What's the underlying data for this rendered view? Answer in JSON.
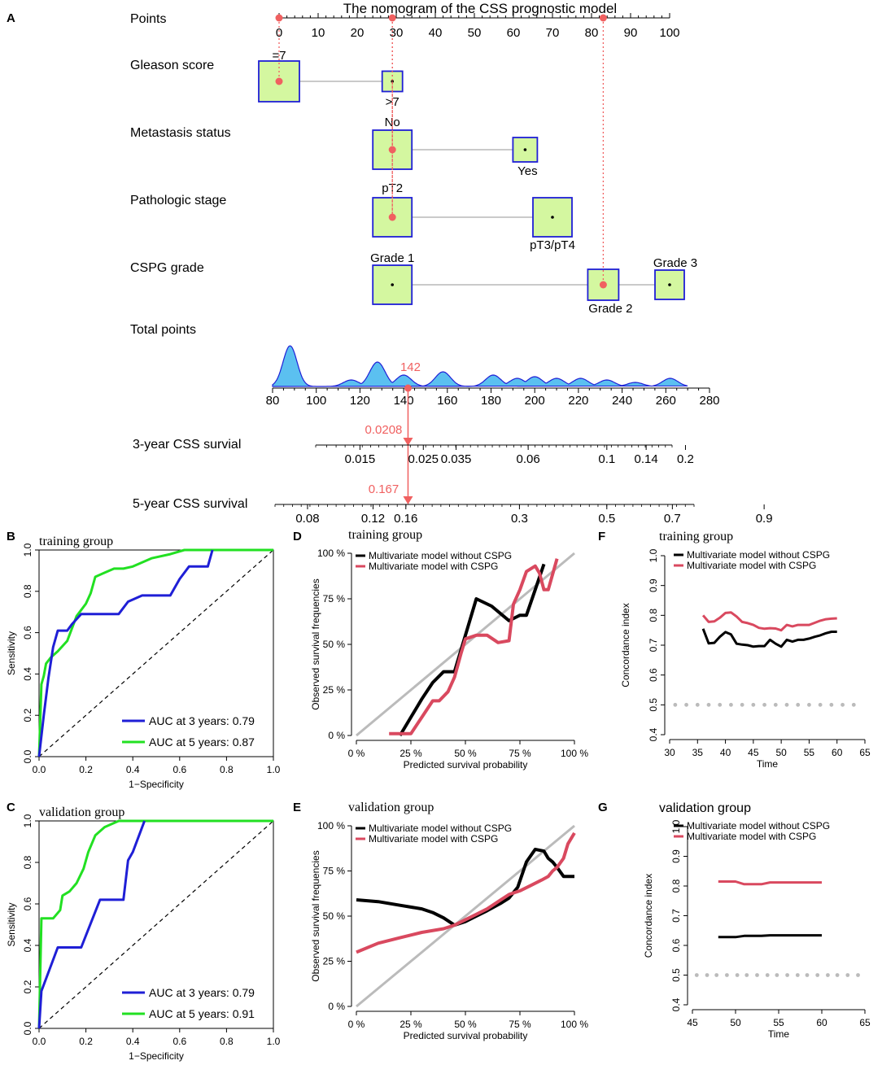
{
  "colors": {
    "box_fill": "#d4f7a0",
    "box_stroke": "#1f1fd6",
    "guide_red": "#f06060",
    "density_fill": "#5bc0f0",
    "density_stroke": "#1f1fd6",
    "roc_3yr": "#1f1fd6",
    "roc_5yr": "#22e022",
    "cal_without": "#000000",
    "cal_with": "#d9495f",
    "ideal_line": "#bbbbbb",
    "ci_ref": "#bbbbbb"
  },
  "panel_letters": [
    "A",
    "B",
    "C",
    "D",
    "E",
    "F",
    "G"
  ],
  "chart_data": [
    {
      "type": "nomogram",
      "panel": "A",
      "title": "The nomogram of the CSS prognostic model",
      "points_axis": {
        "label": "Points",
        "ticks": [
          0,
          10,
          20,
          30,
          40,
          50,
          60,
          70,
          80,
          90,
          100
        ]
      },
      "predictors": [
        {
          "label": "Gleason score",
          "levels": [
            {
              "name": "=7",
              "points": 0
            },
            {
              "name": ">7",
              "points": 29
            }
          ]
        },
        {
          "label": "Metastasis status",
          "levels": [
            {
              "name": "No",
              "points": 29
            },
            {
              "name": "Yes",
              "points": 63
            }
          ]
        },
        {
          "label": "Pathologic stage",
          "levels": [
            {
              "name": "pT2",
              "points": 29
            },
            {
              "name": "pT3/pT4",
              "points": 70
            }
          ]
        },
        {
          "label": "CSPG grade",
          "levels": [
            {
              "name": "Grade 1",
              "points": 29
            },
            {
              "name": "Grade 2",
              "points": 83
            },
            {
              "name": "Grade 3",
              "points": 100
            }
          ]
        }
      ],
      "highlight_points": [
        0,
        29,
        29,
        83
      ],
      "total_points_axis": {
        "label": "Total points",
        "ticks": [
          80,
          100,
          120,
          140,
          160,
          180,
          200,
          220,
          240,
          260,
          280
        ],
        "range": [
          80,
          280
        ]
      },
      "total_density_peaks": [
        88,
        116,
        128,
        140,
        158,
        181,
        192,
        200,
        210,
        221,
        233,
        246,
        262
      ],
      "total_value": 142,
      "total_label": "142",
      "survival_axes": [
        {
          "label": "3-year CSS survial",
          "ticks": [
            "0.015",
            "0.025",
            "0.035",
            "0.06",
            "0.1",
            "0.14",
            "0.2"
          ],
          "tick_totals": [
            120,
            149,
            164,
            197,
            233,
            251,
            269
          ],
          "value_label": "0.0208"
        },
        {
          "label": "5-year CSS survival",
          "ticks": [
            "0.08",
            "0.12",
            "0.16",
            "0.3",
            "0.5",
            "0.7",
            "0.9"
          ],
          "tick_totals": [
            96,
            126,
            141,
            193,
            233,
            263,
            305
          ],
          "value_label": "0.167"
        }
      ]
    },
    {
      "type": "line",
      "panel": "B",
      "title": "training group",
      "xlabel": "1−Specificity",
      "ylabel": "Sensitivity",
      "xlim": [
        0,
        1
      ],
      "ylim": [
        0,
        1
      ],
      "ticks": [
        "0.0",
        "0.2",
        "0.4",
        "0.6",
        "0.8",
        "1.0"
      ],
      "legend": [
        "AUC at 3 years: 0.79",
        "AUC at 5 years: 0.87"
      ],
      "series": [
        {
          "name": "AUC at 3 years: 0.79",
          "x": [
            0.0,
            0.02,
            0.04,
            0.06,
            0.08,
            0.12,
            0.14,
            0.18,
            0.22,
            0.28,
            0.34,
            0.38,
            0.44,
            0.48,
            0.52,
            0.56,
            0.6,
            0.64,
            0.7,
            0.72,
            0.74
          ],
          "y": [
            0.0,
            0.2,
            0.38,
            0.53,
            0.61,
            0.61,
            0.64,
            0.69,
            0.69,
            0.69,
            0.69,
            0.75,
            0.78,
            0.78,
            0.78,
            0.78,
            0.86,
            0.92,
            0.92,
            0.92,
            1.0
          ]
        },
        {
          "name": "AUC at 5 years: 0.87",
          "x": [
            0.0,
            0.01,
            0.02,
            0.03,
            0.05,
            0.08,
            0.12,
            0.16,
            0.2,
            0.22,
            0.24,
            0.28,
            0.32,
            0.36,
            0.4,
            0.48,
            0.56,
            0.62,
            0.7,
            1.0
          ],
          "y": [
            0.0,
            0.35,
            0.39,
            0.45,
            0.48,
            0.51,
            0.56,
            0.68,
            0.74,
            0.79,
            0.87,
            0.89,
            0.91,
            0.91,
            0.92,
            0.96,
            0.98,
            1.0,
            1.0,
            1.0
          ]
        },
        {
          "name": "reference",
          "x": [
            0,
            1
          ],
          "y": [
            0,
            1
          ]
        }
      ]
    },
    {
      "type": "line",
      "panel": "C",
      "title": "validation group",
      "xlabel": "1−Specificity",
      "ylabel": "Sensitivity",
      "xlim": [
        0,
        1
      ],
      "ylim": [
        0,
        1
      ],
      "ticks": [
        "0.0",
        "0.2",
        "0.4",
        "0.6",
        "0.8",
        "1.0"
      ],
      "legend": [
        "AUC at 3 years: 0.79",
        "AUC at 5 years: 0.91"
      ],
      "series": [
        {
          "name": "AUC at 3 years: 0.79",
          "x": [
            0.0,
            0.01,
            0.08,
            0.18,
            0.26,
            0.32,
            0.36,
            0.38,
            0.4,
            0.45
          ],
          "y": [
            0.0,
            0.18,
            0.39,
            0.39,
            0.62,
            0.62,
            0.62,
            0.81,
            0.85,
            1.0
          ]
        },
        {
          "name": "AUC at 5 years: 0.91",
          "x": [
            0.0,
            0.01,
            0.06,
            0.09,
            0.1,
            0.13,
            0.16,
            0.19,
            0.21,
            0.24,
            0.28,
            0.34,
            1.0
          ],
          "y": [
            0.0,
            0.53,
            0.53,
            0.57,
            0.64,
            0.66,
            0.7,
            0.77,
            0.85,
            0.93,
            0.97,
            1.0,
            1.0
          ]
        },
        {
          "name": "reference",
          "x": [
            0,
            1
          ],
          "y": [
            0,
            1
          ]
        }
      ]
    },
    {
      "type": "line",
      "panel": "D",
      "title": "training group",
      "xlabel": "Predicted survival probability",
      "ylabel": "Observed survival frequencies",
      "xticks": [
        "0 %",
        "25 %",
        "50 %",
        "75 %",
        "100 %"
      ],
      "yticks": [
        "0 %",
        "25 %",
        "50 %",
        "75 %",
        "100 %"
      ],
      "xlim": [
        0,
        1
      ],
      "ylim": [
        0,
        1
      ],
      "legend": [
        "Multivariate model without CSPG",
        "Multivariate model with CSPG"
      ],
      "series": [
        {
          "name": "Multivariate model without CSPG",
          "x": [
            0.2,
            0.3,
            0.35,
            0.4,
            0.45,
            0.5,
            0.55,
            0.62,
            0.7,
            0.75,
            0.78,
            0.82,
            0.86
          ],
          "y": [
            0.0,
            0.2,
            0.29,
            0.35,
            0.35,
            0.55,
            0.75,
            0.71,
            0.63,
            0.66,
            0.66,
            0.8,
            0.94
          ]
        },
        {
          "name": "Multivariate model with CSPG",
          "x": [
            0.15,
            0.25,
            0.3,
            0.35,
            0.38,
            0.42,
            0.45,
            0.48,
            0.5,
            0.55,
            0.6,
            0.65,
            0.7,
            0.72,
            0.75,
            0.78,
            0.82,
            0.84,
            0.86,
            0.88,
            0.92
          ],
          "y": [
            0.01,
            0.01,
            0.1,
            0.19,
            0.19,
            0.24,
            0.32,
            0.45,
            0.53,
            0.55,
            0.55,
            0.51,
            0.52,
            0.72,
            0.8,
            0.9,
            0.93,
            0.89,
            0.8,
            0.8,
            0.97
          ]
        },
        {
          "name": "ideal",
          "x": [
            0,
            1
          ],
          "y": [
            0,
            1
          ]
        }
      ]
    },
    {
      "type": "line",
      "panel": "E",
      "title": "validation group",
      "xlabel": "Predicted survival probability",
      "ylabel": "Observed survival frequencies",
      "xticks": [
        "0 %",
        "25 %",
        "50 %",
        "75 %",
        "100 %"
      ],
      "yticks": [
        "0 %",
        "25 %",
        "50 %",
        "75 %",
        "100 %"
      ],
      "xlim": [
        0,
        1
      ],
      "ylim": [
        0,
        1
      ],
      "legend": [
        "Multivariate model without CSPG",
        "Multivariate model with CSPG"
      ],
      "series": [
        {
          "name": "Multivariate model without CSPG",
          "x": [
            0.0,
            0.1,
            0.2,
            0.3,
            0.35,
            0.4,
            0.45,
            0.5,
            0.55,
            0.6,
            0.66,
            0.7,
            0.74,
            0.78,
            0.82,
            0.86,
            0.88,
            0.9,
            0.92,
            0.95,
            1.0
          ],
          "y": [
            0.59,
            0.58,
            0.56,
            0.54,
            0.52,
            0.49,
            0.45,
            0.47,
            0.5,
            0.53,
            0.57,
            0.6,
            0.66,
            0.8,
            0.87,
            0.86,
            0.82,
            0.8,
            0.77,
            0.72,
            0.72
          ]
        },
        {
          "name": "Multivariate model with CSPG",
          "x": [
            0.0,
            0.1,
            0.2,
            0.3,
            0.4,
            0.45,
            0.5,
            0.55,
            0.6,
            0.65,
            0.7,
            0.75,
            0.8,
            0.85,
            0.88,
            0.9,
            0.92,
            0.95,
            0.97,
            1.0
          ],
          "y": [
            0.3,
            0.35,
            0.38,
            0.41,
            0.43,
            0.45,
            0.48,
            0.51,
            0.54,
            0.58,
            0.62,
            0.64,
            0.67,
            0.7,
            0.72,
            0.75,
            0.77,
            0.82,
            0.9,
            0.96
          ]
        },
        {
          "name": "ideal",
          "x": [
            0,
            1
          ],
          "y": [
            0,
            1
          ]
        }
      ]
    },
    {
      "type": "line",
      "panel": "F",
      "title": "training group",
      "xlabel": "Time",
      "ylabel": "Concordance index",
      "xlim": [
        30,
        65
      ],
      "ylim": [
        0.4,
        1.0
      ],
      "xticks": [
        30,
        35,
        40,
        45,
        50,
        55,
        60,
        65
      ],
      "yticks": [
        "0.4",
        "0.5",
        "0.6",
        "0.7",
        "0.8",
        "0.9",
        "1.0"
      ],
      "legend": [
        "Multivariate model without CSPG",
        "Multivariate model with CSPG"
      ],
      "reference_y": 0.5,
      "reference_x": [
        31,
        33,
        35,
        37,
        39,
        41,
        43,
        45,
        47,
        49,
        51,
        53,
        55,
        57,
        59,
        61,
        63
      ],
      "series": [
        {
          "name": "Multivariate model without CSPG",
          "x": [
            36,
            37,
            38,
            39,
            40,
            41,
            42,
            43,
            44,
            45,
            46,
            47,
            48,
            49,
            50,
            51,
            52,
            53,
            54,
            55,
            56,
            57,
            58,
            59,
            60
          ],
          "y": [
            0.755,
            0.706,
            0.708,
            0.728,
            0.744,
            0.736,
            0.705,
            0.702,
            0.7,
            0.695,
            0.697,
            0.697,
            0.718,
            0.705,
            0.695,
            0.718,
            0.712,
            0.718,
            0.718,
            0.722,
            0.728,
            0.733,
            0.74,
            0.745,
            0.745
          ]
        },
        {
          "name": "Multivariate model with CSPG",
          "x": [
            36,
            37,
            38,
            39,
            40,
            41,
            42,
            43,
            44,
            45,
            46,
            47,
            48,
            49,
            50,
            51,
            52,
            53,
            54,
            55,
            56,
            57,
            58,
            59,
            60
          ],
          "y": [
            0.8,
            0.778,
            0.78,
            0.792,
            0.808,
            0.81,
            0.796,
            0.778,
            0.774,
            0.768,
            0.758,
            0.755,
            0.757,
            0.756,
            0.75,
            0.768,
            0.763,
            0.768,
            0.768,
            0.768,
            0.775,
            0.782,
            0.787,
            0.789,
            0.79
          ]
        }
      ]
    },
    {
      "type": "line",
      "panel": "G",
      "title": "validation group",
      "xlabel": "Time",
      "ylabel": "Concordance index",
      "xlim": [
        45,
        65
      ],
      "ylim": [
        0.4,
        1.0
      ],
      "xticks": [
        45,
        50,
        55,
        60,
        65
      ],
      "yticks": [
        "0.4",
        "0.5",
        "0.6",
        "0.7",
        "0.8",
        "0.9",
        "1.0"
      ],
      "legend": [
        "Multivariate model without CSPG",
        "Multivariate model with CSPG"
      ],
      "reference_y": 0.5,
      "reference_x": [
        45.5,
        46.7,
        47.8,
        49,
        50.2,
        51.3,
        52.5,
        53.7,
        54.8,
        56,
        57.2,
        58.3,
        59.5,
        60.7,
        61.8,
        63,
        64.2
      ],
      "series": [
        {
          "name": "Multivariate model without CSPG",
          "x": [
            48,
            50,
            51,
            52,
            53,
            54,
            56,
            58,
            60
          ],
          "y": [
            0.628,
            0.628,
            0.632,
            0.632,
            0.632,
            0.634,
            0.634,
            0.634,
            0.634
          ]
        },
        {
          "name": "Multivariate model with CSPG",
          "x": [
            48,
            50,
            51,
            52,
            53,
            54,
            56,
            58,
            60
          ],
          "y": [
            0.815,
            0.815,
            0.806,
            0.806,
            0.806,
            0.812,
            0.812,
            0.812,
            0.812
          ]
        }
      ]
    }
  ]
}
